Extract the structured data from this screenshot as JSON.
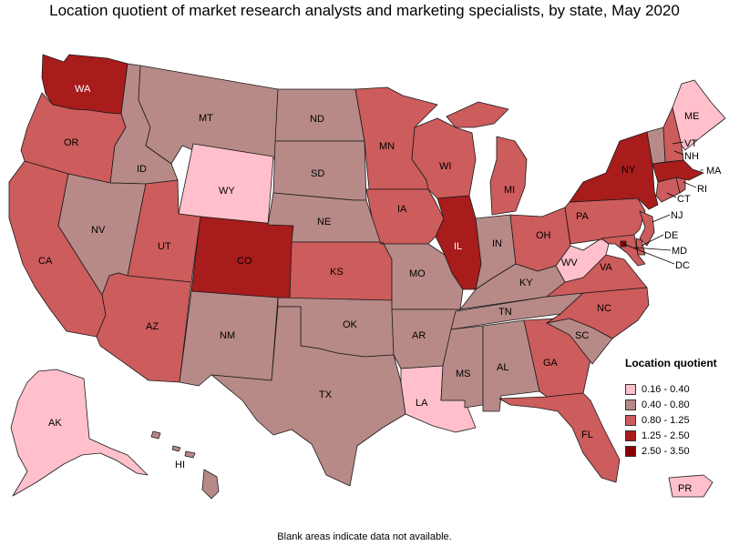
{
  "title": "Location quotient of market research analysts and marketing specialists, by state, May 2020",
  "footnote": "Blank areas indicate data not available.",
  "legend": {
    "title": "Location quotient",
    "classes": [
      {
        "label": "0.16 - 0.40",
        "color": "#ffc0cb"
      },
      {
        "label": "0.40 - 0.80",
        "color": "#b78a87"
      },
      {
        "label": "0.80 - 1.25",
        "color": "#cd5c5c"
      },
      {
        "label": "1.25 - 2.50",
        "color": "#a81c1c"
      },
      {
        "label": "2.50 - 3.50",
        "color": "#8b0000"
      }
    ]
  },
  "states": {
    "WA": {
      "class": 3
    },
    "OR": {
      "class": 2
    },
    "CA": {
      "class": 2
    },
    "ID": {
      "class": 1
    },
    "NV": {
      "class": 1
    },
    "MT": {
      "class": 1
    },
    "WY": {
      "class": 0
    },
    "UT": {
      "class": 2
    },
    "CO": {
      "class": 3
    },
    "AZ": {
      "class": 2
    },
    "NM": {
      "class": 1
    },
    "ND": {
      "class": 1
    },
    "SD": {
      "class": 1
    },
    "NE": {
      "class": 1
    },
    "KS": {
      "class": 2
    },
    "OK": {
      "class": 1
    },
    "TX": {
      "class": 1
    },
    "MN": {
      "class": 2
    },
    "IA": {
      "class": 2
    },
    "MO": {
      "class": 1
    },
    "AR": {
      "class": 1
    },
    "LA": {
      "class": 0
    },
    "WI": {
      "class": 2
    },
    "IL": {
      "class": 3
    },
    "MI": {
      "class": 2
    },
    "IN": {
      "class": 1
    },
    "OH": {
      "class": 2
    },
    "KY": {
      "class": 1
    },
    "TN": {
      "class": 1
    },
    "MS": {
      "class": 1
    },
    "AL": {
      "class": 1
    },
    "GA": {
      "class": 2
    },
    "FL": {
      "class": 2
    },
    "SC": {
      "class": 1
    },
    "NC": {
      "class": 2
    },
    "VA": {
      "class": 2
    },
    "WV": {
      "class": 0
    },
    "PA": {
      "class": 2
    },
    "NY": {
      "class": 3
    },
    "VT": {
      "class": 1
    },
    "NH": {
      "class": 2
    },
    "ME": {
      "class": 0
    },
    "MA": {
      "class": 3
    },
    "RI": {
      "class": 2
    },
    "CT": {
      "class": 2
    },
    "NJ": {
      "class": 2
    },
    "DE": {
      "class": 2
    },
    "MD": {
      "class": 2
    },
    "DC": {
      "class": 4
    },
    "AK": {
      "class": 0
    },
    "HI": {
      "class": 1
    },
    "PR": {
      "class": 0
    }
  }
}
